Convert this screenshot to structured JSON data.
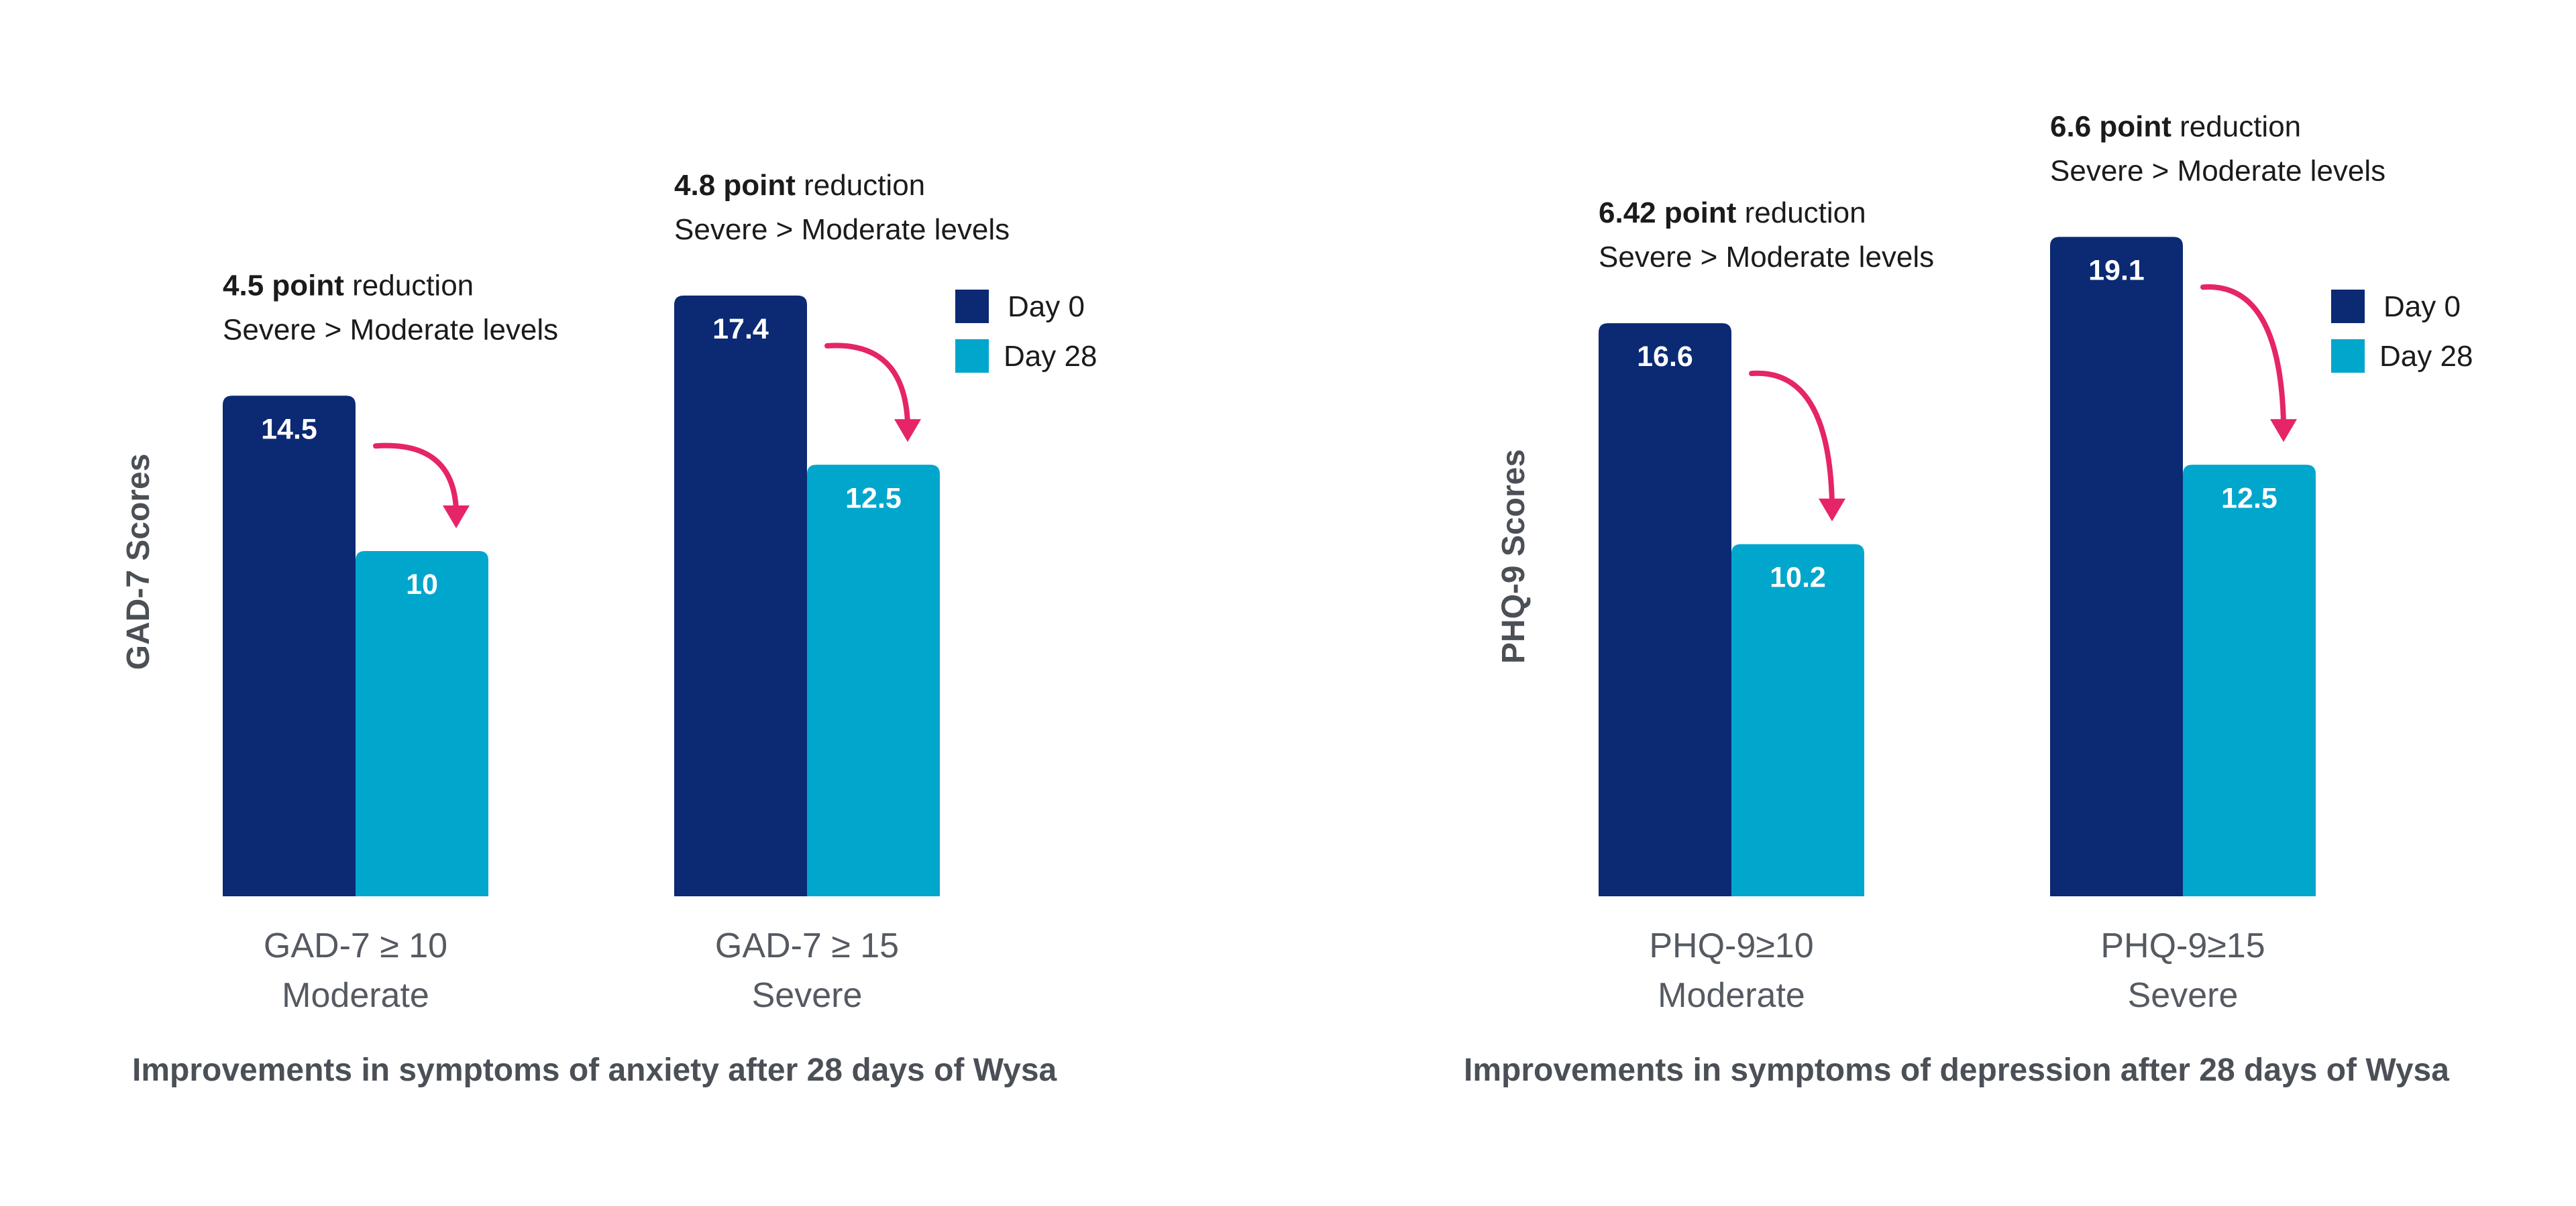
{
  "colors": {
    "day0": "#0b2a73",
    "day28": "#00a6cc",
    "arrow": "#e62468"
  },
  "chart_data": [
    {
      "type": "bar",
      "ylabel": "GAD-7 Scores",
      "caption": "Improvements in symptoms of anxiety after 28 days of Wysa",
      "ylim": [
        0,
        20
      ],
      "legend": [
        {
          "name": "Day 0"
        },
        {
          "name": "Day 28"
        }
      ],
      "groups": [
        {
          "category": [
            "GAD-7 ≥ 10",
            "Moderate"
          ],
          "values": [
            14.5,
            10
          ],
          "labels": [
            "14.5",
            "10"
          ],
          "annotation": {
            "bold": "4.5 point",
            "rest": " reduction",
            "line2": "Severe > Moderate levels"
          }
        },
        {
          "category": [
            "GAD-7 ≥ 15",
            "Severe"
          ],
          "values": [
            17.4,
            12.5
          ],
          "labels": [
            "17.4",
            "12.5"
          ],
          "annotation": {
            "bold": "4.8 point",
            "rest": " reduction",
            "line2": "Severe > Moderate levels"
          }
        }
      ]
    },
    {
      "type": "bar",
      "ylabel": "PHQ-9 Scores",
      "caption": "Improvements in symptoms of depression after 28 days of Wysa",
      "ylim": [
        0,
        20
      ],
      "legend": [
        {
          "name": "Day 0"
        },
        {
          "name": "Day 28"
        }
      ],
      "groups": [
        {
          "category": [
            "PHQ-9≥10",
            "Moderate"
          ],
          "values": [
            16.6,
            10.2
          ],
          "labels": [
            "16.6",
            "10.2"
          ],
          "annotation": {
            "bold": "6.42 point",
            "rest": " reduction",
            "line2": "Severe > Moderate levels"
          }
        },
        {
          "category": [
            "PHQ-9≥15",
            "Severe"
          ],
          "values": [
            19.1,
            12.5
          ],
          "labels": [
            "19.1",
            "12.5"
          ],
          "annotation": {
            "bold": "6.6 point",
            "rest": " reduction",
            "line2": "Severe > Moderate levels"
          }
        }
      ]
    }
  ]
}
